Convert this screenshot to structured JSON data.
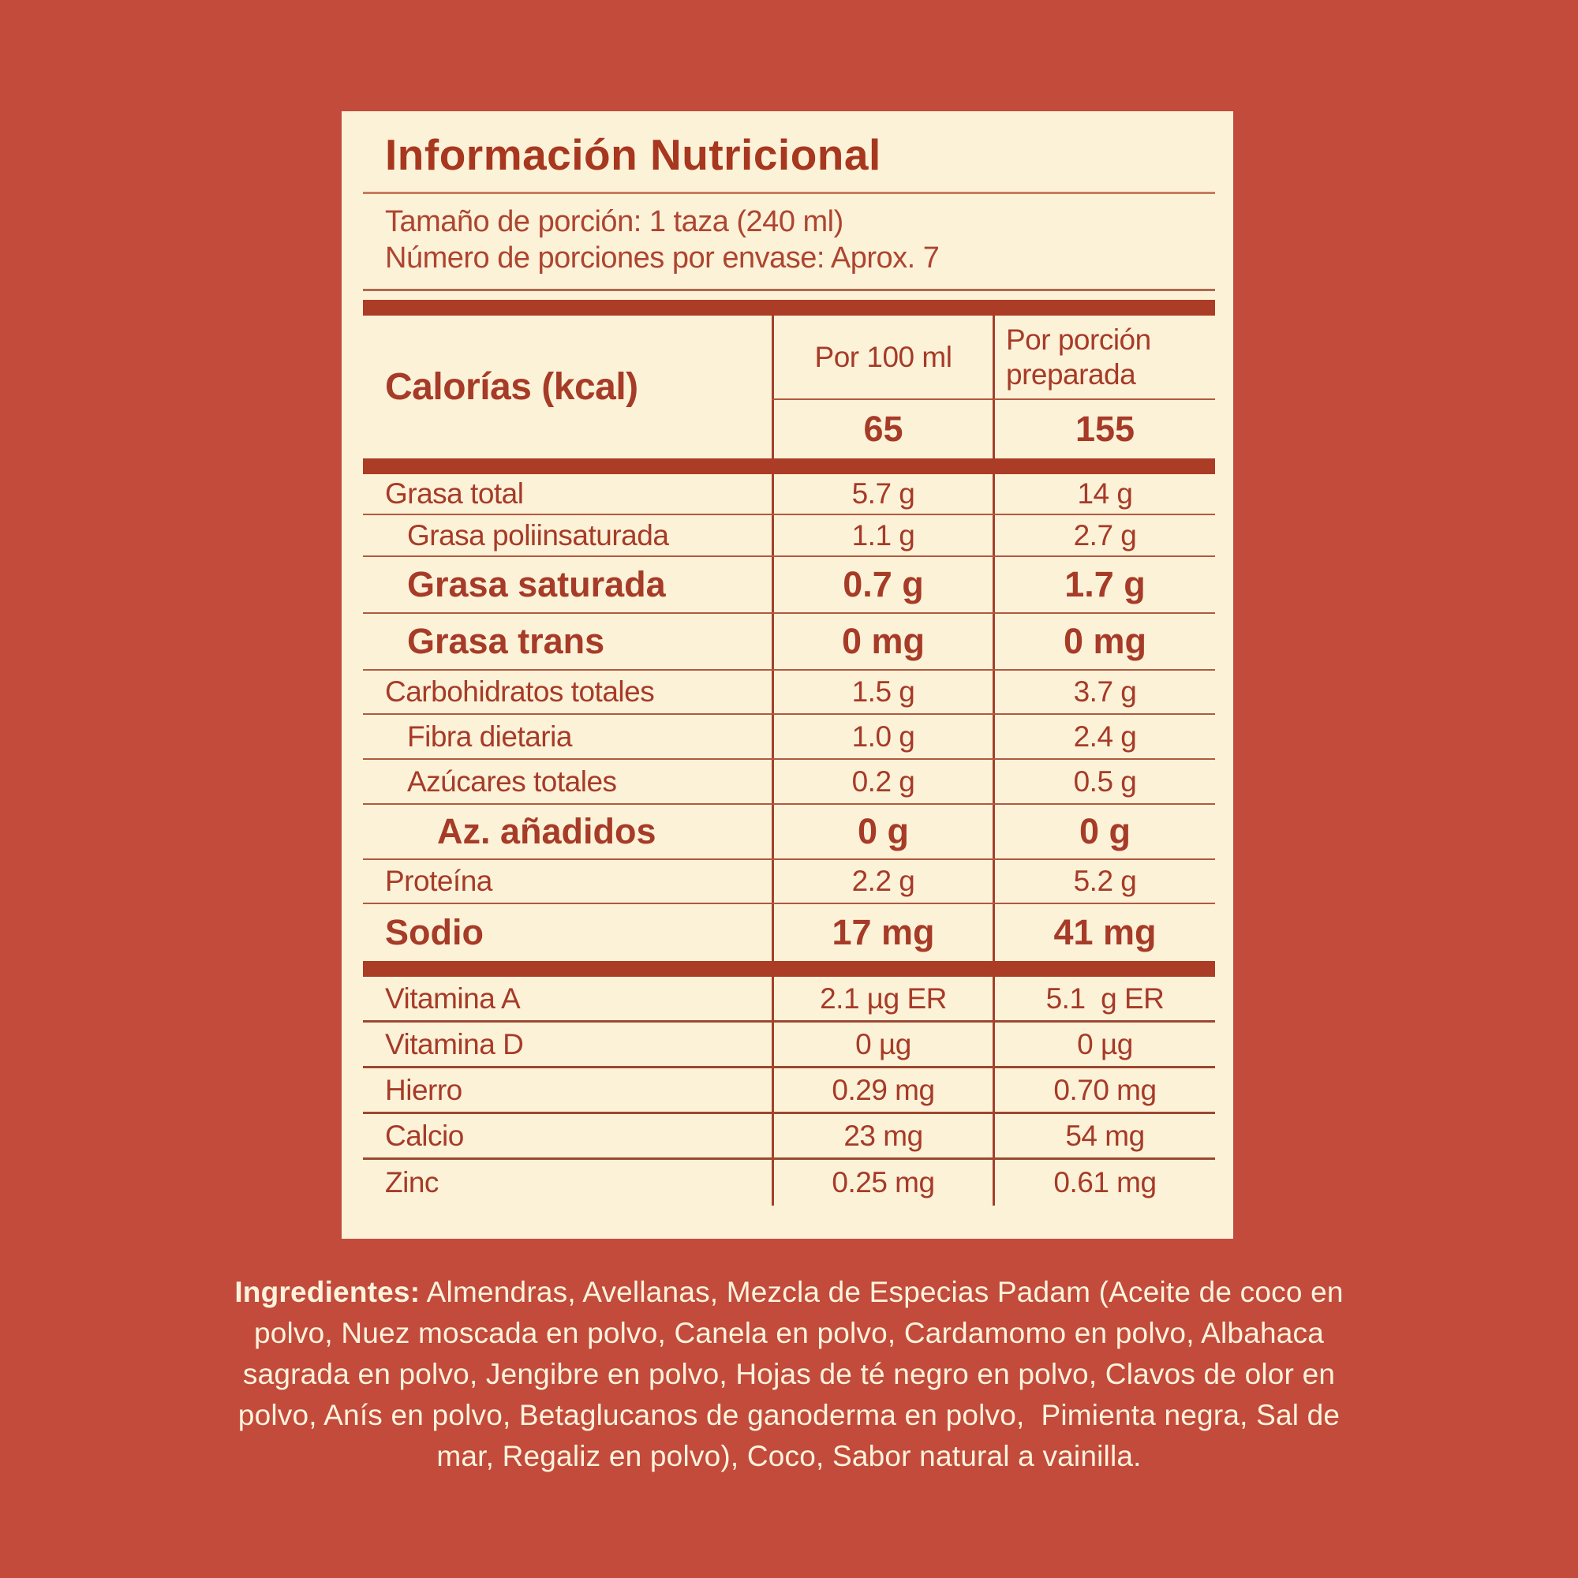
{
  "colors": {
    "background": "#c24b3c",
    "panel": "#fcf2d8",
    "text_red": "#a63b28",
    "bar_red": "#ab3c26",
    "rule_light": "#c57c5f",
    "ingredients_text": "#fdf3dc"
  },
  "label": {
    "title": "Información Nutricional",
    "serving_size": "Tamaño de porción: 1 taza (240 ml)",
    "servings_per_container": "Número de porciones por envase: Aprox. 7",
    "calories": {
      "name": "Calorías (kcal)",
      "col_per_100ml": "Por 100 ml",
      "col_per_serving": "Por porción preparada",
      "per_100ml": "65",
      "per_serving": "155"
    },
    "nutrients": [
      {
        "name": "Grasa total",
        "per_100ml": "5.7 g",
        "per_serving": "14 g"
      },
      {
        "name": "Grasa poliinsaturada",
        "per_100ml": "1.1 g",
        "per_serving": "2.7 g"
      },
      {
        "name": "Grasa saturada",
        "per_100ml": "0.7 g",
        "per_serving": "1.7 g"
      },
      {
        "name": "Grasa trans",
        "per_100ml": "0 mg",
        "per_serving": "0 mg"
      },
      {
        "name": "Carbohidratos totales",
        "per_100ml": "1.5 g",
        "per_serving": "3.7 g"
      },
      {
        "name": "Fibra dietaria",
        "per_100ml": "1.0 g",
        "per_serving": "2.4 g"
      },
      {
        "name": "Azúcares totales",
        "per_100ml": "0.2 g",
        "per_serving": "0.5 g"
      },
      {
        "name": "Az. añadidos",
        "per_100ml": "0 g",
        "per_serving": "0 g"
      },
      {
        "name": "Proteína",
        "per_100ml": "2.2 g",
        "per_serving": "5.2 g"
      },
      {
        "name": "Sodio",
        "per_100ml": "17 mg",
        "per_serving": "41 mg"
      }
    ],
    "micronutrients": [
      {
        "name": "Vitamina A",
        "per_100ml": "2.1 µg ER",
        "per_serving": "5.1  g ER"
      },
      {
        "name": "Vitamina D",
        "per_100ml": "0 µg",
        "per_serving": "0 µg"
      },
      {
        "name": "Hierro",
        "per_100ml": "0.29 mg",
        "per_serving": "0.70 mg"
      },
      {
        "name": "Calcio",
        "per_100ml": "23 mg",
        "per_serving": "54 mg"
      },
      {
        "name": "Zinc",
        "per_100ml": "0.25 mg",
        "per_serving": "0.61 mg"
      }
    ]
  },
  "ingredients": {
    "label": "Ingredientes:",
    "lines": [
      " Almendras, Avellanas, Mezcla de Especias Padam (Aceite de coco en",
      "polvo, Nuez moscada en polvo, Canela en polvo, Cardamomo en polvo, Albahaca",
      "sagrada en polvo, Jengibre en polvo, Hojas de té negro en polvo, Clavos de olor en",
      "polvo, Anís en polvo, Betaglucanos de ganoderma en polvo,  Pimienta negra, Sal de",
      "mar, Regaliz en polvo), Coco, Sabor natural a vainilla."
    ]
  }
}
